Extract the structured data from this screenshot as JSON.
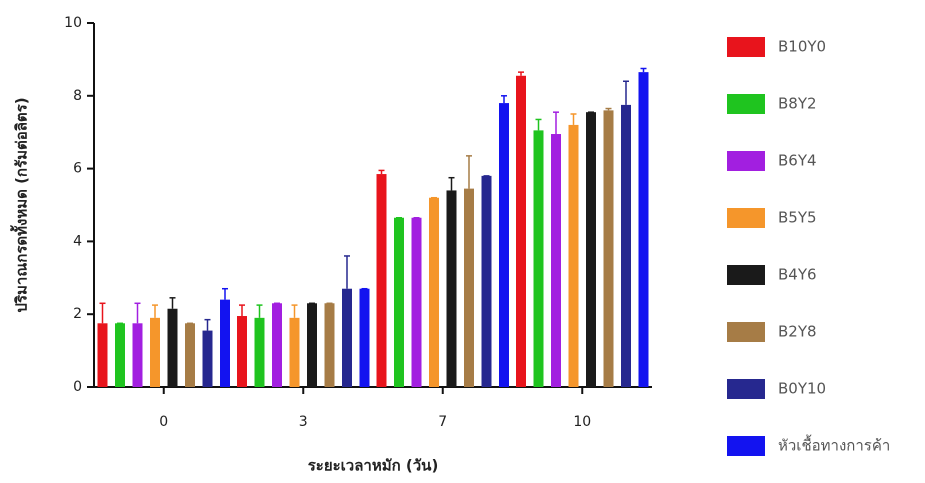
{
  "chart_data": {
    "type": "bar",
    "x_label": "ระยะเวลาหมัก (วัน)",
    "y_label": "ปริมาณกรดทั้งหมด (กรัมต่อลิตร)",
    "categories": [
      "0",
      "3",
      "7",
      "10"
    ],
    "ylim": [
      0,
      10
    ],
    "yticks": [
      0,
      2,
      4,
      6,
      8,
      10
    ],
    "legend": "right",
    "series": [
      {
        "name": "B10Y0",
        "color": "#e8141c",
        "values": [
          1.75,
          1.95,
          5.85,
          8.55
        ],
        "errors": [
          0.55,
          0.3,
          0.1,
          0.1
        ]
      },
      {
        "name": "B8Y2",
        "color": "#1fc41f",
        "values": [
          1.75,
          1.9,
          4.65,
          7.05
        ],
        "errors": [
          0,
          0.35,
          0,
          0.3
        ]
      },
      {
        "name": "B6Y4",
        "color": "#a21fe0",
        "values": [
          1.75,
          2.3,
          4.65,
          6.95
        ],
        "errors": [
          0.55,
          0,
          0,
          0.6
        ]
      },
      {
        "name": "B5Y5",
        "color": "#f5962b",
        "values": [
          1.9,
          1.9,
          5.2,
          7.2
        ],
        "errors": [
          0.35,
          0.35,
          0,
          0.3
        ]
      },
      {
        "name": "B4Y6",
        "color": "#1a1a1a",
        "values": [
          2.15,
          2.3,
          5.4,
          7.55
        ],
        "errors": [
          0.3,
          0,
          0.35,
          0
        ]
      },
      {
        "name": "B2Y8",
        "color": "#a67c46",
        "values": [
          1.75,
          2.3,
          5.45,
          7.6
        ],
        "errors": [
          0,
          0,
          0.9,
          0.05
        ]
      },
      {
        "name": "B0Y10",
        "color": "#26288f",
        "values": [
          1.55,
          2.7,
          5.8,
          7.75
        ],
        "errors": [
          0.3,
          0.9,
          0,
          0.65
        ]
      },
      {
        "name": "หัวเชื้อทางการค้า",
        "color": "#1313f0",
        "values": [
          2.4,
          2.7,
          7.8,
          8.65
        ],
        "errors": [
          0.3,
          0,
          0.2,
          0.1
        ]
      }
    ]
  }
}
